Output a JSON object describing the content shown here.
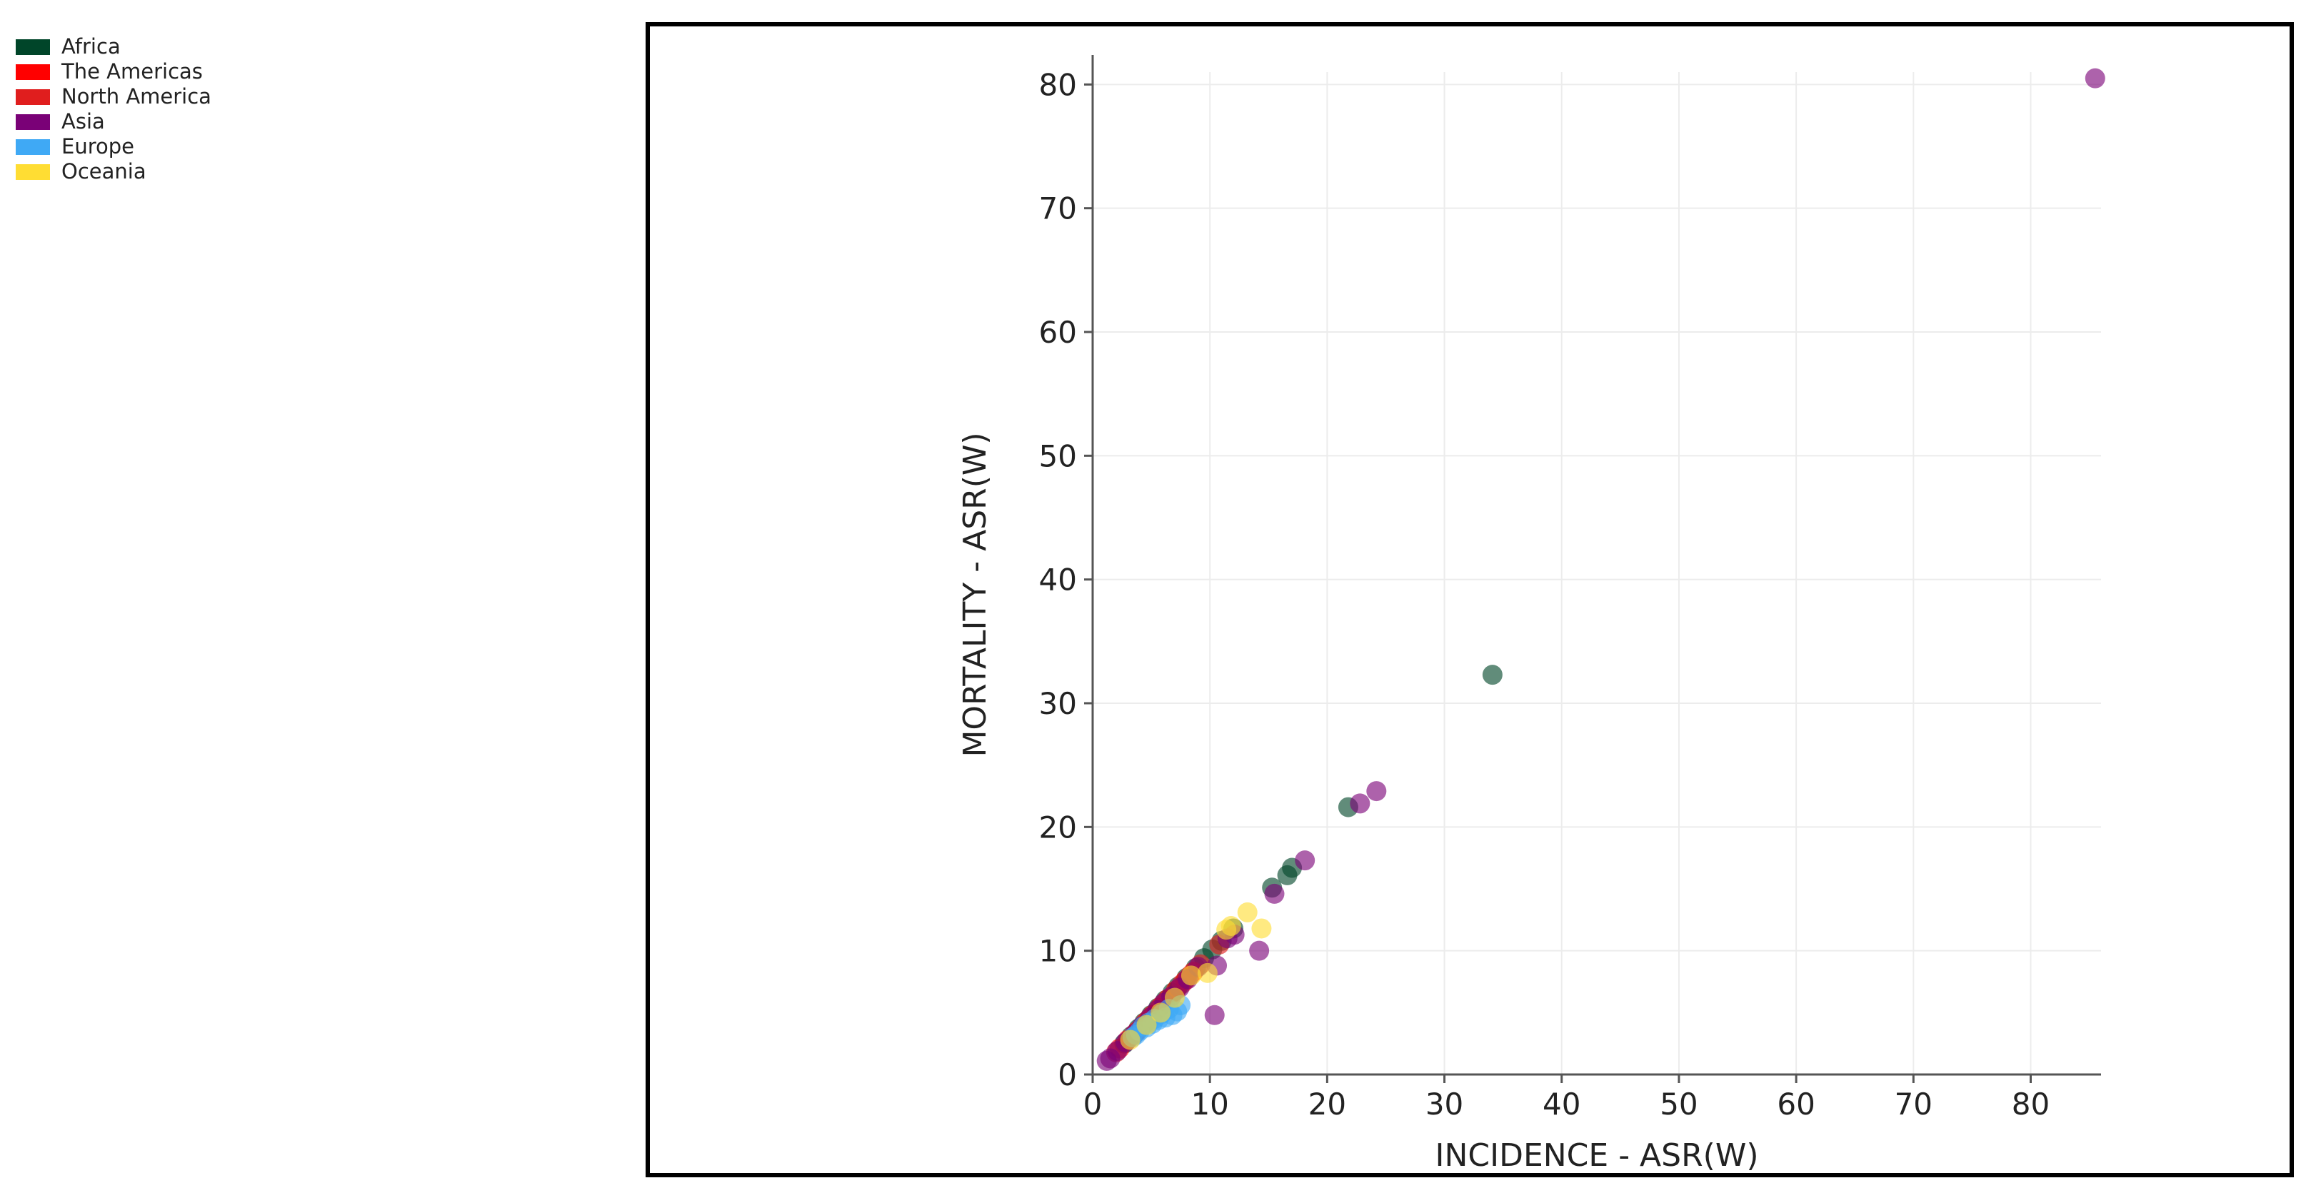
{
  "legend": {
    "items": [
      {
        "label": "Africa",
        "color": "#004529"
      },
      {
        "label": "The Americas",
        "color": "#ff0000"
      },
      {
        "label": "North America",
        "color": "#e01e1e"
      },
      {
        "label": "Asia",
        "color": "#7a0177"
      },
      {
        "label": "Europe",
        "color": "#3fa9f5"
      },
      {
        "label": "Oceania",
        "color": "#ffdd33"
      }
    ]
  },
  "chart_data": {
    "type": "scatter",
    "title": "",
    "xlabel": "INCIDENCE - ASR(W)",
    "ylabel": "MORTALITY - ASR(W)",
    "xlim": [
      0,
      86
    ],
    "ylim": [
      0,
      81
    ],
    "xticks": [
      0,
      10,
      20,
      30,
      40,
      50,
      60,
      70,
      80
    ],
    "yticks": [
      0,
      10,
      20,
      30,
      40,
      50,
      60,
      70,
      80
    ],
    "grid": true,
    "legend_position": "top-left",
    "series": [
      {
        "name": "Africa",
        "color": "#004529",
        "points": [
          [
            34.1,
            32.3
          ],
          [
            21.8,
            21.6
          ],
          [
            17.0,
            16.7
          ],
          [
            16.6,
            16.1
          ],
          [
            15.3,
            15.1
          ],
          [
            12.0,
            11.8
          ],
          [
            11.0,
            10.8
          ],
          [
            10.2,
            10.1
          ],
          [
            9.5,
            9.4
          ],
          [
            8.8,
            8.6
          ],
          [
            8.0,
            7.8
          ],
          [
            7.3,
            7.1
          ],
          [
            6.8,
            6.6
          ],
          [
            6.2,
            6.0
          ],
          [
            5.6,
            5.4
          ],
          [
            5.0,
            4.8
          ],
          [
            4.4,
            4.2
          ],
          [
            3.9,
            3.7
          ],
          [
            3.3,
            3.1
          ],
          [
            2.7,
            2.5
          ]
        ]
      },
      {
        "name": "The Americas",
        "color": "#ff0000",
        "points": [
          [
            8.6,
            8.3
          ],
          [
            7.9,
            7.6
          ],
          [
            7.1,
            6.8
          ],
          [
            6.4,
            6.1
          ],
          [
            5.7,
            5.4
          ],
          [
            5.1,
            4.8
          ],
          [
            4.5,
            4.2
          ],
          [
            3.8,
            3.5
          ],
          [
            3.0,
            2.8
          ],
          [
            2.3,
            2.1
          ]
        ]
      },
      {
        "name": "North America",
        "color": "#e01e1e",
        "points": [
          [
            10.8,
            10.5
          ],
          [
            9.2,
            8.9
          ],
          [
            8.3,
            8.0
          ],
          [
            7.6,
            7.3
          ],
          [
            6.0,
            5.7
          ],
          [
            4.8,
            4.5
          ],
          [
            3.5,
            3.2
          ],
          [
            2.0,
            1.8
          ]
        ]
      },
      {
        "name": "Asia",
        "color": "#7a0177",
        "points": [
          [
            85.5,
            80.5
          ],
          [
            24.2,
            22.9
          ],
          [
            22.8,
            21.9
          ],
          [
            18.1,
            17.3
          ],
          [
            15.5,
            14.6
          ],
          [
            14.2,
            10.0
          ],
          [
            10.4,
            4.8
          ],
          [
            10.6,
            8.8
          ],
          [
            12.1,
            11.3
          ],
          [
            11.5,
            11.0
          ],
          [
            9.0,
            8.7
          ],
          [
            8.1,
            7.7
          ],
          [
            7.4,
            7.0
          ],
          [
            6.7,
            6.3
          ],
          [
            6.1,
            5.8
          ],
          [
            5.5,
            5.2
          ],
          [
            4.9,
            4.6
          ],
          [
            4.2,
            3.9
          ],
          [
            3.6,
            3.3
          ],
          [
            2.8,
            2.6
          ],
          [
            2.1,
            1.9
          ],
          [
            1.5,
            1.3
          ],
          [
            1.2,
            1.1
          ]
        ]
      },
      {
        "name": "Europe",
        "color": "#3fa9f5",
        "points": [
          [
            7.5,
            5.6
          ],
          [
            7.2,
            5.1
          ],
          [
            6.8,
            4.8
          ],
          [
            6.5,
            5.3
          ],
          [
            6.2,
            4.6
          ],
          [
            5.9,
            4.9
          ],
          [
            5.6,
            4.4
          ],
          [
            5.3,
            4.5
          ],
          [
            5.1,
            4.1
          ],
          [
            4.8,
            4.2
          ],
          [
            4.6,
            3.8
          ],
          [
            4.3,
            3.9
          ],
          [
            4.0,
            3.5
          ],
          [
            3.7,
            3.2
          ],
          [
            3.4,
            3.0
          ]
        ]
      },
      {
        "name": "Oceania",
        "color": "#ffdd33",
        "points": [
          [
            14.4,
            11.8
          ],
          [
            13.2,
            13.1
          ],
          [
            11.8,
            12.0
          ],
          [
            11.4,
            11.7
          ],
          [
            9.8,
            8.2
          ],
          [
            8.4,
            8.0
          ],
          [
            7.0,
            6.2
          ],
          [
            5.8,
            5.0
          ],
          [
            4.6,
            4.0
          ],
          [
            3.2,
            2.8
          ]
        ]
      }
    ]
  }
}
